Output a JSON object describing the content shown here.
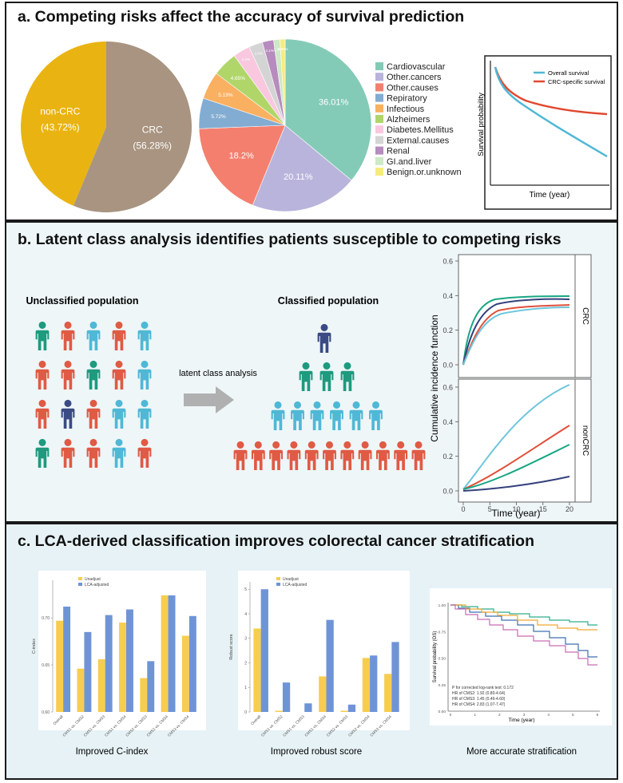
{
  "panels": {
    "a": {
      "title": "a. Competing risks affect the accuracy of survival prediction",
      "pie1": [
        {
          "label": "CRC",
          "pct": "(56.28%)",
          "value": 56.28,
          "color": "#a89480"
        },
        {
          "label": "non-CRC",
          "pct": "(43.72%)",
          "value": 43.72,
          "color": "#e9b412"
        }
      ],
      "pie2": {
        "slices": [
          {
            "label": "Cardiovascular",
            "value": 36.01,
            "text": "36.01%",
            "color": "#84cbb7"
          },
          {
            "label": "Other.cancers",
            "value": 20.11,
            "text": "20.11%",
            "color": "#b9b4db"
          },
          {
            "label": "Other.causes",
            "value": 18.2,
            "text": "18.2%",
            "color": "#f47f6f"
          },
          {
            "label": "Repiratory",
            "value": 5.72,
            "text": "5.72%",
            "color": "#83acd2"
          },
          {
            "label": "Infectious",
            "value": 5.19,
            "text": "5.19%",
            "color": "#f9b061"
          },
          {
            "label": "Alzheimers",
            "value": 4.65,
            "text": "4.65%",
            "color": "#b0d66a"
          },
          {
            "label": "Diabetes.Mellitus",
            "value": 3.2,
            "text": "3.2%",
            "color": "#f9c8de"
          },
          {
            "label": "External.causes",
            "value": 2.6,
            "text": "2.6%",
            "color": "#d4d4d4"
          },
          {
            "label": "Renal",
            "value": 2.1,
            "text": "2.1%",
            "color": "#b68bbd"
          },
          {
            "label": "GI.and.liver",
            "value": 1.2,
            "text": "1.2%",
            "color": "#cde9c5"
          },
          {
            "label": "Benign.or.unknown",
            "value": 0.95,
            "text": "0.95%",
            "color": "#f6ec7d"
          }
        ]
      },
      "survival": {
        "ylabel": "Survival probability",
        "xlabel": "Time (year)",
        "legend": [
          {
            "name": "Overall survival",
            "color": "#4fb8d6"
          },
          {
            "name": "CRC-specific survival",
            "color": "#e0492f"
          }
        ]
      }
    },
    "b": {
      "title": "b. Latent class analysis identifies patients susceptible to competing risks",
      "unclassified_label": "Unclassified population",
      "classified_label": "Classified population",
      "arrow_label": "latent class analysis",
      "cif": {
        "ylabel": "Cumulative incidence function",
        "xlabel": "Time (year)",
        "top_strip": "CRC",
        "bottom_strip": "nonCRC",
        "yticks": [
          "0.0",
          "0.2",
          "0.4",
          "0.6"
        ],
        "xticks": [
          "0",
          "5",
          "10",
          "15",
          "20"
        ]
      }
    },
    "c": {
      "title": "c. LCA-derived classification improves colorectal cancer stratification",
      "legend": [
        "Unadjust",
        "LCA-adjusted"
      ],
      "categories": [
        "Overall",
        "CMS1 vs. CMS2",
        "CMS1 vs. CMS3",
        "CMS1 vs. CMS4",
        "CMS2 vs. CMS3",
        "CMS2 vs. CMS4",
        "CMS3 vs. CMS4"
      ],
      "cindex": {
        "caption": "Improved C-index",
        "ylabel": "C-index",
        "yticks": [
          "0.60",
          "0.65",
          "0.70"
        ],
        "ylim": [
          0.6,
          0.74
        ],
        "series": [
          {
            "name": "Unadjust",
            "color": "#f7cd4f",
            "values": [
              0.697,
              0.646,
              0.656,
              0.695,
              0.636,
              0.724,
              0.681
            ]
          },
          {
            "name": "LCA-adjusted",
            "color": "#6f94d6",
            "values": [
              0.712,
              0.685,
              0.703,
              0.709,
              0.654,
              0.724,
              0.702
            ]
          }
        ]
      },
      "robust": {
        "caption": "Improved robust score",
        "ylabel": "Robust score",
        "yticks": [
          "0",
          "1",
          "2",
          "3",
          "4",
          "5"
        ],
        "ylim": [
          0,
          5.3
        ],
        "series": [
          {
            "name": "Unadjust",
            "color": "#f7cd4f",
            "values": [
              3.4,
              0.05,
              0.0,
              1.45,
              0.05,
              2.2,
              1.55
            ]
          },
          {
            "name": "LCA-adjusted",
            "color": "#6f94d6",
            "values": [
              5.0,
              1.2,
              0.35,
              3.75,
              0.3,
              2.3,
              2.85
            ]
          }
        ]
      },
      "km": {
        "caption": "More accurate stratification",
        "ylabel": "Survival probability (OS)",
        "xlabel": "Time (year)",
        "yticks": [
          "0.00",
          "0.25",
          "0.50",
          "0.75",
          "1.00"
        ],
        "xticks": [
          "0",
          "1",
          "2",
          "3",
          "4",
          "5",
          "6"
        ],
        "stats": [
          "P for corrected log-rank test: 0.172",
          "HR of CMS2: 1.92 (0.80-4.64)",
          "HR of CMS3: 1.45 (0.46-4.60)",
          "HR of CMS4: 2.83 (1.07-7.47)"
        ]
      }
    }
  }
}
